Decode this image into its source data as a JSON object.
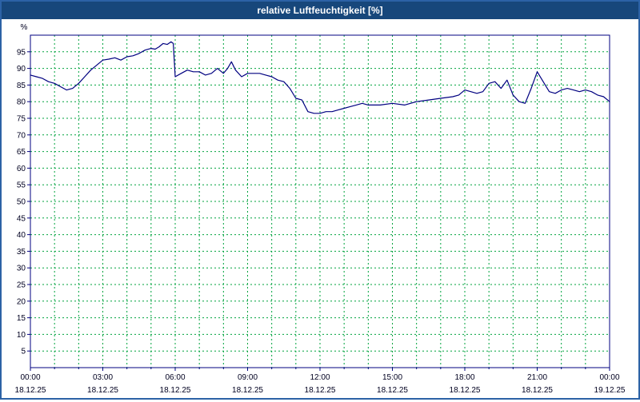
{
  "window": {
    "title": "relative Luftfeuchtigkeit [%]"
  },
  "colors": {
    "title_bar": "#17477b",
    "outer_border": "#2c62a6",
    "plot_background": "#ffffff",
    "grid": "#00a33e",
    "axis": "#000080",
    "line": "#000080",
    "tick_text": "#000020",
    "title_text": "#ffffff"
  },
  "chart_data": {
    "type": "line",
    "title": "relative Luftfeuchtigkeit [%]",
    "xlabel": "",
    "ylabel": "%",
    "ylim": [
      0,
      100
    ],
    "xlim": [
      0,
      24
    ],
    "grid": true,
    "legend": "none",
    "grid_color": "#00a33e",
    "axis_color": "#000080",
    "line_color": "#000080",
    "y_ticks": [
      5,
      10,
      15,
      20,
      25,
      30,
      35,
      40,
      45,
      50,
      55,
      60,
      65,
      70,
      75,
      80,
      85,
      90,
      95
    ],
    "x_ticks": [
      {
        "hour": 0,
        "time": "00:00",
        "date": "18.12.25"
      },
      {
        "hour": 3,
        "time": "03:00",
        "date": "18.12.25"
      },
      {
        "hour": 6,
        "time": "06:00",
        "date": "18.12.25"
      },
      {
        "hour": 9,
        "time": "09:00",
        "date": "18.12.25"
      },
      {
        "hour": 12,
        "time": "12:00",
        "date": "18.12.25"
      },
      {
        "hour": 15,
        "time": "15:00",
        "date": "18.12.25"
      },
      {
        "hour": 18,
        "time": "18:00",
        "date": "18.12.25"
      },
      {
        "hour": 21,
        "time": "21:00",
        "date": "18.12.25"
      },
      {
        "hour": 24,
        "time": "00:00",
        "date": "19.12.25"
      }
    ],
    "series": [
      {
        "name": "relative Luftfeuchtigkeit [%]",
        "x": [
          0,
          0.25,
          0.5,
          0.75,
          1,
          1.25,
          1.5,
          1.75,
          2,
          2.25,
          2.5,
          2.75,
          3,
          3.25,
          3.5,
          3.75,
          4,
          4.25,
          4.5,
          4.75,
          5,
          5.17,
          5.33,
          5.5,
          5.67,
          5.83,
          5.92,
          6,
          6.25,
          6.5,
          6.75,
          7,
          7.25,
          7.5,
          7.75,
          8,
          8.17,
          8.33,
          8.5,
          8.75,
          9,
          9.25,
          9.5,
          9.75,
          10,
          10.25,
          10.5,
          10.75,
          11,
          11.25,
          11.5,
          11.75,
          12,
          12.25,
          12.5,
          12.75,
          13,
          13.25,
          13.5,
          13.75,
          14,
          14.5,
          15,
          15.5,
          16,
          16.5,
          17,
          17.5,
          17.75,
          18,
          18.25,
          18.5,
          18.75,
          19,
          19.25,
          19.5,
          19.75,
          20,
          20.25,
          20.5,
          20.75,
          21,
          21.25,
          21.5,
          21.75,
          22,
          22.25,
          22.5,
          22.75,
          23,
          23.25,
          23.5,
          23.75,
          24
        ],
        "y": [
          88,
          87.5,
          87,
          86,
          85.5,
          84.5,
          83.5,
          84,
          85.5,
          87.5,
          89.5,
          91,
          92.5,
          92.8,
          93.2,
          92.5,
          93.5,
          93.8,
          94.5,
          95.5,
          96,
          95.8,
          96.5,
          97.5,
          97.2,
          98,
          97.5,
          87.5,
          88.5,
          89.5,
          89,
          89,
          88,
          88.5,
          90,
          88.5,
          90,
          92,
          89.5,
          87.5,
          88.5,
          88.5,
          88.5,
          88,
          87.5,
          86.5,
          86,
          84,
          81,
          80.5,
          77,
          76.5,
          76.5,
          77,
          77,
          77.5,
          78,
          78.5,
          79,
          79.5,
          79,
          79,
          79.5,
          79,
          80,
          80.5,
          81,
          81.5,
          82,
          83.5,
          83,
          82.5,
          83,
          85.5,
          86,
          84,
          86.5,
          82,
          80,
          79.5,
          84,
          89,
          86,
          83,
          82.5,
          83.5,
          84,
          83.5,
          83,
          83.5,
          83,
          82,
          81.5,
          80
        ]
      }
    ]
  }
}
